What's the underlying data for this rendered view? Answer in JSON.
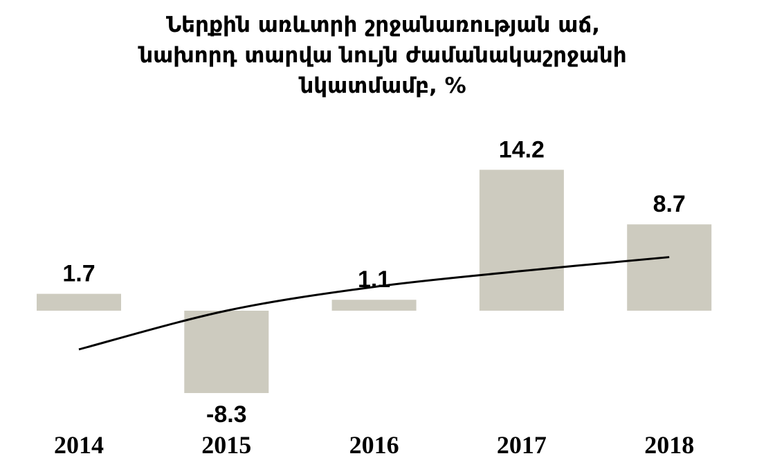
{
  "chart_data": {
    "type": "bar",
    "title_lines": [
      "Ներքին առևտրի շրջանառության աճ,",
      "նախորդ տարվա նույն ժամանակաշրջանի",
      "նկատմամբ, %"
    ],
    "categories": [
      "2014",
      "2015",
      "2016",
      "2017",
      "2018"
    ],
    "values": [
      1.7,
      -8.3,
      1.1,
      14.2,
      8.7
    ],
    "value_labels": [
      "1.7",
      "-8.3",
      "1.1",
      "14.2",
      "8.7"
    ],
    "trendline": {
      "type": "logarithmic",
      "points": [
        -3.9,
        0.0,
        2.4,
        4.0,
        5.4
      ]
    },
    "ylim": [
      -9,
      15
    ],
    "grid": false,
    "legend": "none",
    "colors": {
      "bar": "#cdcbbf",
      "trendline": "#000000",
      "text": "#000000"
    }
  }
}
